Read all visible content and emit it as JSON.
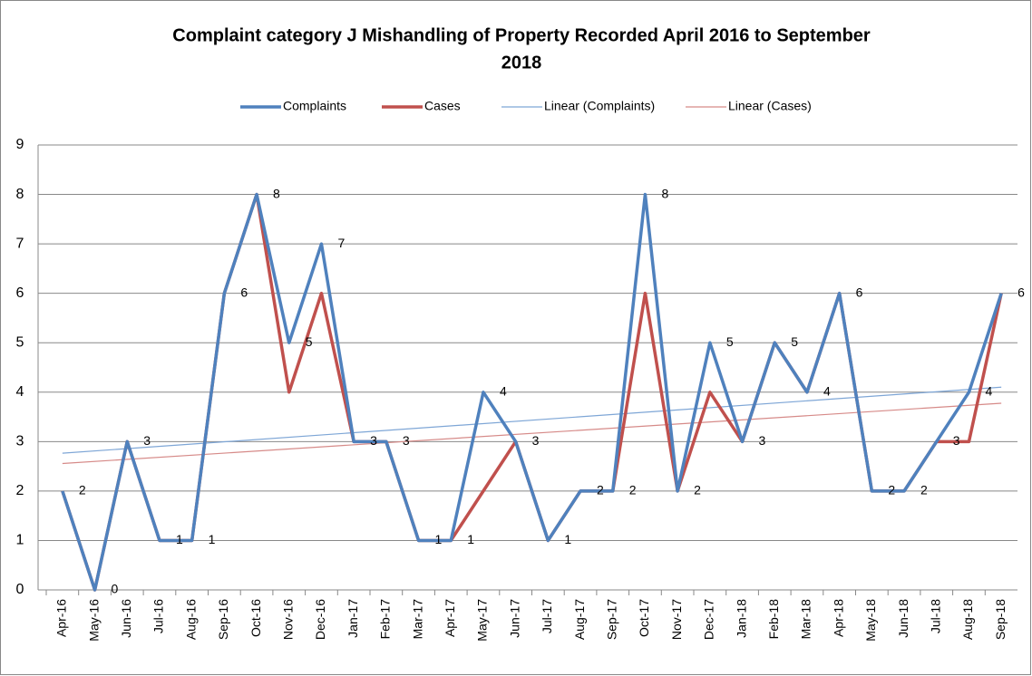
{
  "chart_data": {
    "type": "line",
    "title": [
      "Complaint category J Mishandling of Property Recorded April 2016 to September",
      "2018"
    ],
    "categories": [
      "Apr-16",
      "May-16",
      "Jun-16",
      "Jul-16",
      "Aug-16",
      "Sep-16",
      "Oct-16",
      "Nov-16",
      "Dec-16",
      "Jan-17",
      "Feb-17",
      "Mar-17",
      "Apr-17",
      "May-17",
      "Jun-17",
      "Jul-17",
      "Aug-17",
      "Sep-17",
      "Oct-17",
      "Nov-17",
      "Dec-17",
      "Jan-18",
      "Feb-18",
      "Mar-18",
      "Apr-18",
      "May-18",
      "Jun-18",
      "Jul-18",
      "Aug-18",
      "Sep-18"
    ],
    "series": [
      {
        "name": "Complaints",
        "color": "#4f81bd",
        "values": [
          2,
          0,
          3,
          1,
          1,
          6,
          8,
          5,
          7,
          3,
          3,
          1,
          1,
          4,
          3,
          1,
          2,
          2,
          8,
          2,
          5,
          3,
          5,
          4,
          6,
          2,
          2,
          3,
          4,
          6
        ]
      },
      {
        "name": "Cases",
        "color": "#c0504d",
        "values": [
          2,
          0,
          3,
          1,
          1,
          6,
          8,
          4,
          6,
          3,
          3,
          1,
          1,
          2,
          3,
          1,
          2,
          2,
          6,
          2,
          4,
          3,
          5,
          4,
          6,
          2,
          2,
          3,
          3,
          6
        ]
      }
    ],
    "trendlines": [
      {
        "name": "Linear (Complaints)",
        "series": 0,
        "color": "#7ea6d6"
      },
      {
        "name": "Linear (Cases)",
        "series": 1,
        "color": "#d68a88"
      }
    ],
    "data_labels_series": 0,
    "ylim": [
      0,
      9
    ],
    "yticks": [
      0,
      1,
      2,
      3,
      4,
      5,
      6,
      7,
      8,
      9
    ],
    "grid": true,
    "legend": "top"
  }
}
